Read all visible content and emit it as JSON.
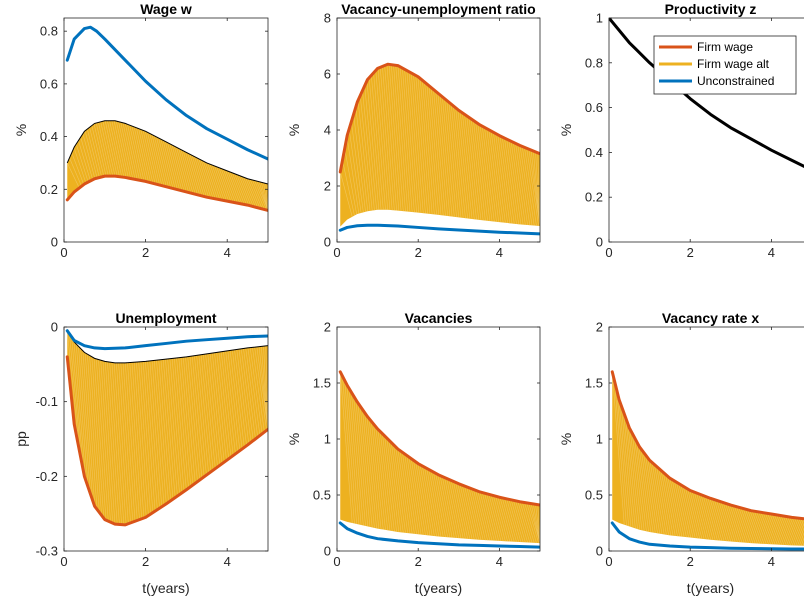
{
  "chart_data": [
    {
      "type": "line",
      "title": "Wage w",
      "xlabel": "",
      "ylabel": "%",
      "xlim": [
        0,
        5
      ],
      "ylim": [
        0,
        0.85
      ],
      "xticks": [
        0,
        2,
        4
      ],
      "yticks": [
        0,
        0.2,
        0.4,
        0.6,
        0.8
      ],
      "ytick_labels": [
        "0",
        "0.2",
        "0.4",
        "0.6",
        "0.8"
      ],
      "band": {
        "x": [
          0.08,
          0.25,
          0.5,
          0.75,
          1.0,
          1.25,
          1.5,
          2.0,
          2.5,
          3.0,
          3.5,
          4.0,
          4.5,
          5.0
        ],
        "upper": [
          0.3,
          0.36,
          0.42,
          0.45,
          0.46,
          0.46,
          0.45,
          0.42,
          0.38,
          0.34,
          0.3,
          0.27,
          0.24,
          0.22
        ],
        "lower": [
          0.16,
          0.19,
          0.22,
          0.24,
          0.25,
          0.25,
          0.245,
          0.23,
          0.21,
          0.19,
          0.17,
          0.155,
          0.14,
          0.12
        ]
      },
      "series": [
        {
          "color": "#0072BD",
          "x": [
            0.08,
            0.25,
            0.5,
            0.65,
            0.8,
            1.0,
            1.5,
            2.0,
            2.5,
            3.0,
            3.5,
            4.0,
            4.5,
            5.0
          ],
          "y": [
            0.69,
            0.77,
            0.81,
            0.815,
            0.8,
            0.77,
            0.69,
            0.61,
            0.54,
            0.48,
            0.43,
            0.39,
            0.35,
            0.315
          ]
        },
        {
          "color": "#D95319",
          "x": [
            0.08,
            0.25,
            0.5,
            0.75,
            1.0,
            1.25,
            1.5,
            2.0,
            2.5,
            3.0,
            3.5,
            4.0,
            4.5,
            5.0
          ],
          "y": [
            0.16,
            0.19,
            0.22,
            0.24,
            0.25,
            0.25,
            0.245,
            0.23,
            0.21,
            0.19,
            0.17,
            0.155,
            0.14,
            0.12
          ]
        }
      ]
    },
    {
      "type": "line",
      "title": "Vacancy-unemployment ratio",
      "xlabel": "",
      "ylabel": "%",
      "xlim": [
        0,
        5
      ],
      "ylim": [
        0,
        8
      ],
      "xticks": [
        0,
        2,
        4
      ],
      "yticks": [
        0,
        2,
        4,
        6,
        8
      ],
      "ytick_labels": [
        "0",
        "2",
        "4",
        "6",
        "8"
      ],
      "band": {
        "x": [
          0.08,
          0.25,
          0.5,
          0.75,
          1.0,
          1.25,
          1.5,
          2.0,
          2.5,
          3.0,
          3.5,
          4.0,
          4.5,
          5.0
        ],
        "upper": [
          2.5,
          3.8,
          5.0,
          5.8,
          6.2,
          6.35,
          6.3,
          5.9,
          5.3,
          4.7,
          4.2,
          3.8,
          3.45,
          3.15
        ],
        "lower": [
          0.55,
          0.8,
          1.0,
          1.1,
          1.15,
          1.15,
          1.12,
          1.05,
          0.97,
          0.88,
          0.79,
          0.71,
          0.63,
          0.57
        ]
      },
      "series": [
        {
          "color": "#0072BD",
          "x": [
            0.08,
            0.25,
            0.5,
            0.75,
            1.0,
            1.5,
            2.0,
            2.5,
            3.0,
            3.5,
            4.0,
            4.5,
            5.0
          ],
          "y": [
            0.42,
            0.52,
            0.58,
            0.6,
            0.6,
            0.57,
            0.52,
            0.47,
            0.43,
            0.39,
            0.35,
            0.32,
            0.29
          ]
        },
        {
          "color": "#D95319",
          "x": [
            0.08,
            0.25,
            0.5,
            0.75,
            1.0,
            1.25,
            1.5,
            2.0,
            2.5,
            3.0,
            3.5,
            4.0,
            4.5,
            5.0
          ],
          "y": [
            2.5,
            3.8,
            5.0,
            5.8,
            6.2,
            6.35,
            6.3,
            5.9,
            5.3,
            4.7,
            4.2,
            3.8,
            3.45,
            3.15
          ]
        }
      ]
    },
    {
      "type": "line",
      "title": "Productivity z",
      "xlabel": "",
      "ylabel": "%",
      "xlim": [
        0,
        5
      ],
      "ylim": [
        0,
        1
      ],
      "xticks": [
        0,
        2,
        4
      ],
      "yticks": [
        0,
        0.2,
        0.4,
        0.6,
        0.8,
        1
      ],
      "ytick_labels": [
        "0",
        "0.2",
        "0.4",
        "0.6",
        "0.8",
        "1"
      ],
      "series": [
        {
          "color": "#000000",
          "x": [
            0.0,
            0.5,
            1.0,
            1.5,
            2.0,
            2.5,
            3.0,
            3.5,
            4.0,
            4.5,
            5.0
          ],
          "y": [
            1.0,
            0.89,
            0.8,
            0.72,
            0.64,
            0.57,
            0.51,
            0.46,
            0.41,
            0.365,
            0.32
          ]
        }
      ],
      "legend": {
        "placement": "top-right",
        "entries": [
          {
            "label": "Firm wage",
            "color": "#D95319"
          },
          {
            "label": "Firm wage alt",
            "color": "#EDB120"
          },
          {
            "label": "Unconstrained",
            "color": "#0072BD"
          }
        ]
      }
    },
    {
      "type": "line",
      "title": "Unemployment",
      "xlabel": "t(years)",
      "ylabel": "pp",
      "xlim": [
        0,
        5
      ],
      "ylim": [
        -0.3,
        0
      ],
      "xticks": [
        0,
        2,
        4
      ],
      "yticks": [
        -0.3,
        -0.2,
        -0.1,
        0
      ],
      "ytick_labels": [
        "-0.3",
        "-0.2",
        "-0.1",
        "0"
      ],
      "band": {
        "x": [
          0.08,
          0.25,
          0.5,
          0.75,
          1.0,
          1.25,
          1.5,
          2.0,
          2.5,
          3.0,
          3.5,
          4.0,
          4.5,
          5.0
        ],
        "upper": [
          -0.005,
          -0.02,
          -0.034,
          -0.042,
          -0.046,
          -0.048,
          -0.048,
          -0.046,
          -0.043,
          -0.04,
          -0.036,
          -0.032,
          -0.028,
          -0.025
        ],
        "lower": [
          -0.04,
          -0.13,
          -0.2,
          -0.24,
          -0.258,
          -0.264,
          -0.265,
          -0.255,
          -0.237,
          -0.218,
          -0.198,
          -0.178,
          -0.158,
          -0.137
        ]
      },
      "series": [
        {
          "color": "#0072BD",
          "x": [
            0.08,
            0.25,
            0.5,
            0.75,
            1.0,
            1.5,
            2.0,
            2.5,
            3.0,
            3.5,
            4.0,
            4.5,
            5.0
          ],
          "y": [
            -0.005,
            -0.018,
            -0.025,
            -0.028,
            -0.029,
            -0.028,
            -0.025,
            -0.022,
            -0.019,
            -0.017,
            -0.015,
            -0.013,
            -0.012
          ]
        },
        {
          "color": "#D95319",
          "x": [
            0.08,
            0.25,
            0.5,
            0.75,
            1.0,
            1.25,
            1.5,
            2.0,
            2.5,
            3.0,
            3.5,
            4.0,
            4.5,
            5.0
          ],
          "y": [
            -0.04,
            -0.13,
            -0.2,
            -0.24,
            -0.258,
            -0.264,
            -0.265,
            -0.255,
            -0.237,
            -0.218,
            -0.198,
            -0.178,
            -0.158,
            -0.137
          ]
        }
      ]
    },
    {
      "type": "line",
      "title": "Vacancies",
      "xlabel": "t(years)",
      "ylabel": "%",
      "xlim": [
        0,
        5
      ],
      "ylim": [
        0,
        2
      ],
      "xticks": [
        0,
        2,
        4
      ],
      "yticks": [
        0,
        0.5,
        1,
        1.5,
        2
      ],
      "ytick_labels": [
        "0",
        "0.5",
        "1",
        "1.5",
        "2"
      ],
      "band": {
        "x": [
          0.08,
          0.25,
          0.5,
          0.75,
          1.0,
          1.5,
          2.0,
          2.5,
          3.0,
          3.5,
          4.0,
          4.5,
          5.0
        ],
        "upper": [
          1.6,
          1.48,
          1.33,
          1.2,
          1.09,
          0.91,
          0.78,
          0.68,
          0.6,
          0.53,
          0.48,
          0.44,
          0.41
        ],
        "lower": [
          0.28,
          0.26,
          0.24,
          0.22,
          0.2,
          0.17,
          0.15,
          0.13,
          0.115,
          0.1,
          0.09,
          0.08,
          0.07
        ]
      },
      "series": [
        {
          "color": "#0072BD",
          "x": [
            0.08,
            0.25,
            0.5,
            0.75,
            1.0,
            1.5,
            2.0,
            2.5,
            3.0,
            3.5,
            4.0,
            4.5,
            5.0
          ],
          "y": [
            0.25,
            0.2,
            0.16,
            0.13,
            0.11,
            0.09,
            0.075,
            0.065,
            0.055,
            0.05,
            0.045,
            0.04,
            0.035
          ]
        },
        {
          "color": "#D95319",
          "x": [
            0.08,
            0.25,
            0.5,
            0.75,
            1.0,
            1.5,
            2.0,
            2.5,
            3.0,
            3.5,
            4.0,
            4.5,
            5.0
          ],
          "y": [
            1.6,
            1.48,
            1.33,
            1.2,
            1.09,
            0.91,
            0.78,
            0.68,
            0.6,
            0.53,
            0.48,
            0.44,
            0.41
          ]
        }
      ]
    },
    {
      "type": "line",
      "title": "Vacancy rate x",
      "xlabel": "t(years)",
      "ylabel": "%",
      "xlim": [
        0,
        5
      ],
      "ylim": [
        0,
        2
      ],
      "xticks": [
        0,
        2,
        4
      ],
      "yticks": [
        0,
        0.5,
        1,
        1.5,
        2
      ],
      "ytick_labels": [
        "0",
        "0.5",
        "1",
        "1.5",
        "2"
      ],
      "band": {
        "x": [
          0.08,
          0.25,
          0.5,
          0.75,
          1.0,
          1.5,
          2.0,
          2.5,
          3.0,
          3.5,
          4.0,
          4.5,
          5.0
        ],
        "upper": [
          1.6,
          1.35,
          1.1,
          0.93,
          0.81,
          0.65,
          0.54,
          0.47,
          0.41,
          0.36,
          0.33,
          0.3,
          0.28
        ],
        "lower": [
          0.28,
          0.25,
          0.22,
          0.19,
          0.17,
          0.14,
          0.12,
          0.1,
          0.085,
          0.07,
          0.06,
          0.05,
          0.045
        ]
      },
      "series": [
        {
          "color": "#0072BD",
          "x": [
            0.08,
            0.25,
            0.5,
            0.75,
            1.0,
            1.5,
            2.0,
            2.5,
            3.0,
            3.5,
            4.0,
            4.5,
            5.0
          ],
          "y": [
            0.25,
            0.17,
            0.11,
            0.08,
            0.06,
            0.045,
            0.035,
            0.03,
            0.025,
            0.022,
            0.02,
            0.018,
            0.017
          ]
        },
        {
          "color": "#D95319",
          "x": [
            0.08,
            0.25,
            0.5,
            0.75,
            1.0,
            1.5,
            2.0,
            2.5,
            3.0,
            3.5,
            4.0,
            4.5,
            5.0
          ],
          "y": [
            1.6,
            1.35,
            1.1,
            0.93,
            0.81,
            0.65,
            0.54,
            0.47,
            0.41,
            0.36,
            0.33,
            0.3,
            0.28
          ]
        }
      ]
    }
  ],
  "colors": {
    "band_fill": "#EDB120",
    "band_edge": "#000000"
  }
}
